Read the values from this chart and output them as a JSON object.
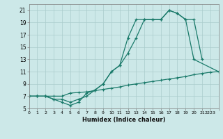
{
  "bg_color": "#cce8e8",
  "grid_color": "#aacccc",
  "line_color": "#1a7a6a",
  "xlabel": "Humidex (Indice chaleur)",
  "line1_x": [
    0,
    1,
    2,
    3,
    4,
    5,
    6,
    7,
    8,
    9,
    10,
    11,
    12,
    13,
    14,
    15,
    16,
    17,
    18,
    19,
    20,
    23
  ],
  "line1_y": [
    7,
    7,
    7,
    6.5,
    6,
    5.5,
    6.0,
    7.5,
    8.0,
    9.0,
    11.0,
    12.0,
    16.5,
    19.5,
    19.5,
    19.5,
    19.5,
    21.0,
    20.5,
    19.5,
    13.0,
    11.0
  ],
  "line2_x": [
    0,
    1,
    2,
    3,
    4,
    5,
    6,
    7,
    8,
    9,
    10,
    11,
    12,
    13,
    14,
    15,
    16,
    17,
    18,
    19,
    20,
    21
  ],
  "line2_y": [
    7,
    7,
    7,
    6.5,
    6.5,
    6.0,
    6.5,
    7.0,
    8.0,
    9.0,
    11.0,
    12.0,
    14.0,
    16.5,
    19.5,
    19.5,
    19.5,
    21.0,
    20.5,
    19.5,
    19.5,
    13.0
  ],
  "line3_x": [
    0,
    1,
    2,
    3,
    4,
    5,
    6,
    7,
    8,
    9,
    10,
    11,
    12,
    13,
    14,
    15,
    16,
    17,
    18,
    19,
    20,
    21,
    22,
    23
  ],
  "line3_y": [
    7.0,
    7.0,
    7.0,
    7.0,
    7.0,
    7.5,
    7.6,
    7.7,
    7.9,
    8.1,
    8.3,
    8.5,
    8.8,
    9.0,
    9.2,
    9.4,
    9.6,
    9.8,
    10.0,
    10.2,
    10.5,
    10.7,
    10.9,
    11.0
  ],
  "xlim": [
    0,
    23
  ],
  "ylim": [
    5,
    22
  ],
  "yticks": [
    5,
    7,
    9,
    11,
    13,
    15,
    17,
    19,
    21
  ],
  "ytick_labels": [
    "5",
    "7",
    "9",
    "11",
    "13",
    "15",
    "17",
    "19",
    "21"
  ],
  "xtick_labels": [
    "0",
    "1",
    "2",
    "3",
    "4",
    "5",
    "6",
    "7",
    "8",
    "9",
    "10",
    "11",
    "12",
    "13",
    "14",
    "15",
    "16",
    "17",
    "18",
    "19",
    "20",
    "21",
    "2223",
    ""
  ]
}
